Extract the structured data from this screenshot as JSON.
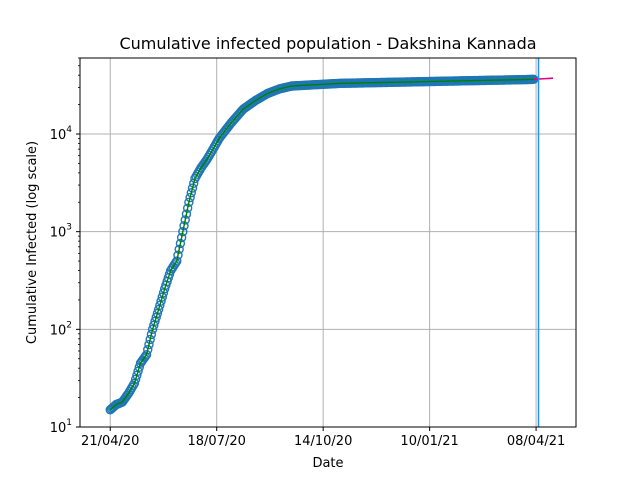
{
  "chart_data": {
    "type": "scatter",
    "title": "Cumulative infected population - Dakshina Kannada",
    "xlabel": "Date",
    "ylabel": "Cumulative Infected (log scale)",
    "x_tick_labels": [
      "21/04/20",
      "18/07/20",
      "14/10/20",
      "10/01/21",
      "08/04/21"
    ],
    "x_tick_days": [
      0,
      88,
      176,
      264,
      352
    ],
    "y_scale": "log",
    "ylim": [
      10,
      60000
    ],
    "y_tick_exponents": [
      1,
      2,
      3,
      4
    ],
    "y_tick_base": "10",
    "xlim_days": [
      -25,
      385
    ],
    "grid": true,
    "colors": {
      "observed_marker": "#1f77b4",
      "fit_line": "#008000",
      "vertical_marker": "#1e90ff",
      "forecast_line": "#e6007e"
    },
    "observed": {
      "days": [
        0,
        5,
        10,
        15,
        20,
        25,
        30,
        35,
        40,
        45,
        50,
        55,
        60,
        65,
        70,
        75,
        80,
        85,
        90,
        100,
        110,
        120,
        130,
        140,
        150,
        160,
        170,
        180,
        190,
        200,
        210,
        220,
        230,
        240,
        250,
        260,
        270,
        280,
        290,
        300,
        310,
        320,
        330,
        340,
        350
      ],
      "values": [
        15,
        17,
        18,
        22,
        28,
        45,
        55,
        100,
        160,
        260,
        400,
        500,
        1000,
        2000,
        3500,
        4500,
        5500,
        7000,
        9000,
        13000,
        18000,
        22000,
        26000,
        29000,
        31000,
        31500,
        32000,
        32500,
        33000,
        33200,
        33400,
        33600,
        33800,
        34000,
        34200,
        34400,
        34600,
        34800,
        35000,
        35200,
        35400,
        35600,
        35800,
        36000,
        36300
      ]
    },
    "vertical_line_day": 354,
    "forecast": {
      "days": [
        350,
        358,
        366
      ],
      "values": [
        36300,
        36800,
        37300
      ]
    }
  }
}
